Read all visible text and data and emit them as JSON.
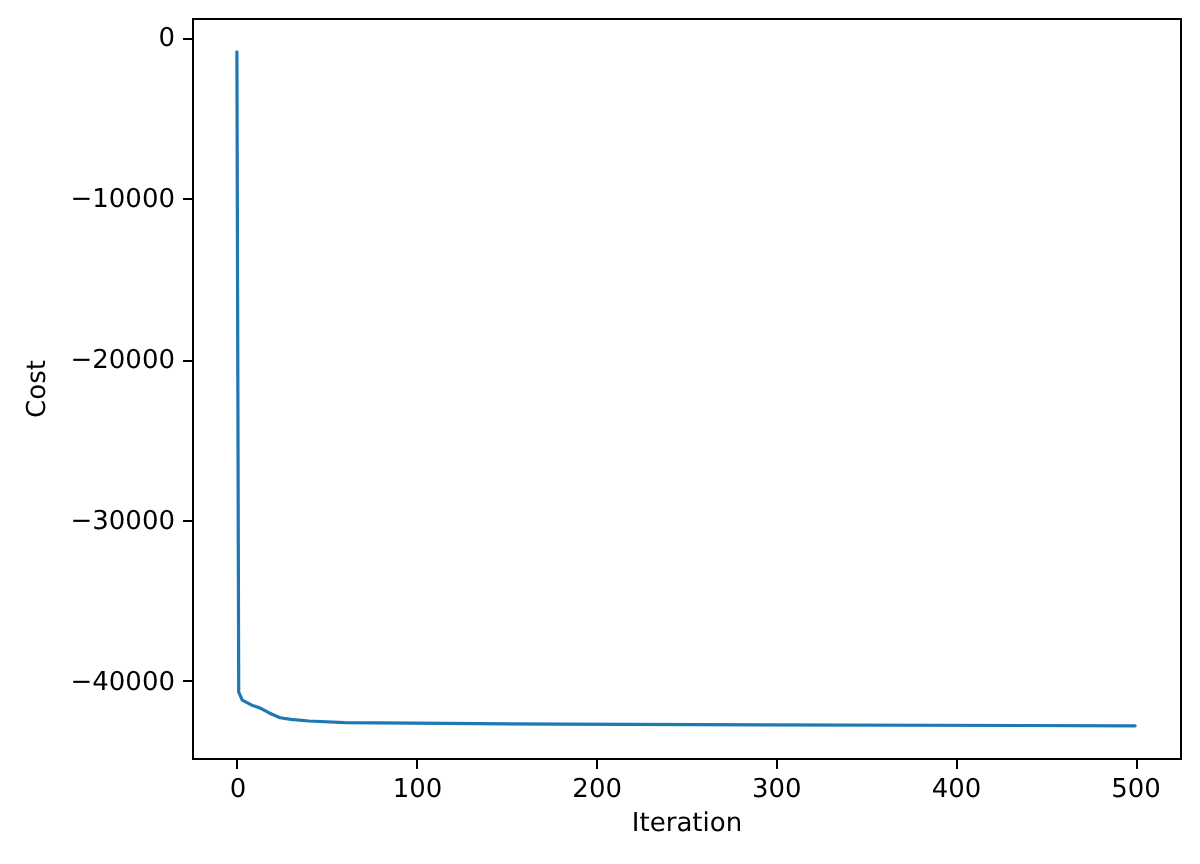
{
  "chart_data": {
    "type": "line",
    "xlabel": "Iteration",
    "ylabel": "Cost",
    "x": [
      0,
      1,
      3,
      8,
      13,
      18,
      24,
      30,
      40,
      60,
      180,
      500
    ],
    "series": [
      {
        "color": "#1f77b4",
        "values": [
          -900,
          -40700,
          -41200,
          -41500,
          -41700,
          -42000,
          -42300,
          -42400,
          -42500,
          -42600,
          -42700,
          -42800
        ]
      }
    ],
    "xlim": [
      -25,
      525
    ],
    "ylim": [
      -44800,
      1200
    ],
    "xticks": [
      0,
      100,
      200,
      300,
      400,
      500
    ],
    "yticks": [
      {
        "value": -40000,
        "label": "−40000"
      },
      {
        "value": -30000,
        "label": "−30000"
      },
      {
        "value": -20000,
        "label": "−20000"
      },
      {
        "value": -10000,
        "label": "−10000"
      },
      0
    ],
    "line_style": "solid"
  }
}
